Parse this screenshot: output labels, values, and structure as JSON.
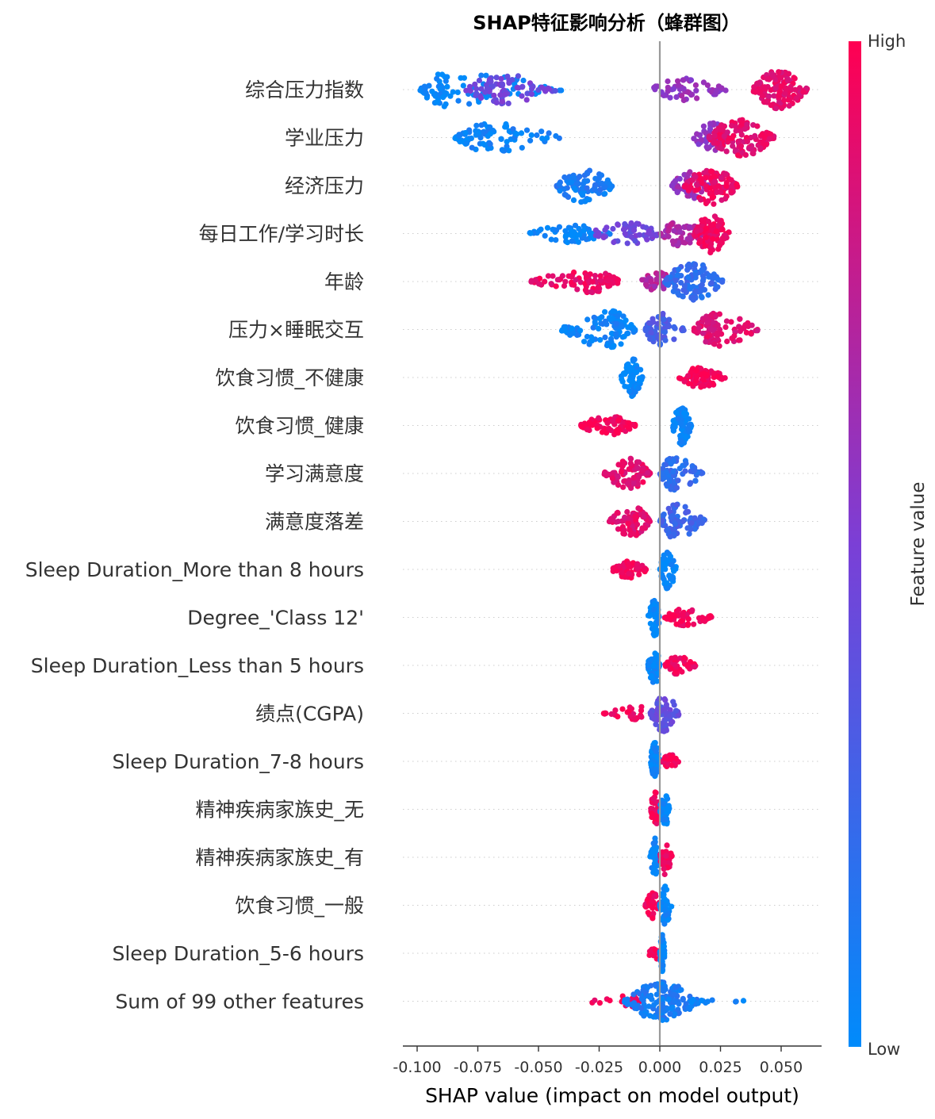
{
  "chart_data": {
    "type": "scatter",
    "title": "SHAP特征影响分析（蜂群图）",
    "xlabel": "SHAP value (impact on model output)",
    "xlim": [
      -0.106,
      0.068
    ],
    "x_ticks": [
      -0.1,
      -0.075,
      -0.05,
      -0.025,
      0.0,
      0.025,
      0.05
    ],
    "x_tick_labels": [
      "-0.100",
      "-0.075",
      "-0.050",
      "-0.025",
      "0.000",
      "0.025",
      "0.050"
    ],
    "colorbar": {
      "label": "Feature value",
      "high": "High",
      "low": "Low",
      "low_color": "#008bfb",
      "high_color": "#ff0052"
    },
    "features": [
      {
        "name": "综合压力指数",
        "clusters": [
          {
            "min": -0.099,
            "max": -0.04,
            "center": -0.088,
            "n": 90,
            "spread": 0.9,
            "value": 0.02
          },
          {
            "min": -0.08,
            "max": -0.042,
            "center": -0.065,
            "n": 70,
            "spread": 0.8,
            "value": 0.45
          },
          {
            "min": -0.004,
            "max": 0.028,
            "center": 0.01,
            "n": 55,
            "spread": 0.6,
            "value": 0.6
          },
          {
            "min": 0.038,
            "max": 0.061,
            "center": 0.049,
            "n": 140,
            "spread": 1.0,
            "value": 0.9
          }
        ]
      },
      {
        "name": "学业压力",
        "clusters": [
          {
            "min": -0.085,
            "max": -0.04,
            "center": -0.07,
            "n": 90,
            "spread": 0.75,
            "value": 0.05
          },
          {
            "min": 0.014,
            "max": 0.028,
            "center": 0.022,
            "n": 55,
            "spread": 0.8,
            "value": 0.55
          },
          {
            "min": 0.02,
            "max": 0.047,
            "center": 0.033,
            "n": 130,
            "spread": 1.0,
            "value": 0.9
          }
        ]
      },
      {
        "name": "经济压力",
        "clusters": [
          {
            "min": -0.043,
            "max": -0.019,
            "center": -0.032,
            "n": 90,
            "spread": 0.9,
            "value": 0.1
          },
          {
            "min": 0.005,
            "max": 0.02,
            "center": 0.012,
            "n": 55,
            "spread": 0.75,
            "value": 0.6
          },
          {
            "min": 0.01,
            "max": 0.032,
            "center": 0.022,
            "n": 110,
            "spread": 1.0,
            "value": 0.92
          }
        ]
      },
      {
        "name": "每日工作/学习时长",
        "clusters": [
          {
            "min": -0.054,
            "max": -0.02,
            "center": -0.035,
            "n": 60,
            "spread": 0.5,
            "value": 0.02
          },
          {
            "min": -0.03,
            "max": 0.0,
            "center": -0.012,
            "n": 60,
            "spread": 0.55,
            "value": 0.45
          },
          {
            "min": 0.0,
            "max": 0.018,
            "center": 0.008,
            "n": 60,
            "spread": 0.65,
            "value": 0.7
          },
          {
            "min": 0.014,
            "max": 0.029,
            "center": 0.021,
            "n": 100,
            "spread": 1.0,
            "value": 0.95
          }
        ]
      },
      {
        "name": "年龄",
        "clusters": [
          {
            "min": -0.053,
            "max": -0.016,
            "center": -0.03,
            "n": 90,
            "spread": 0.6,
            "value": 0.92
          },
          {
            "min": -0.008,
            "max": 0.006,
            "center": -0.001,
            "n": 40,
            "spread": 0.5,
            "value": 0.7
          },
          {
            "min": 0.002,
            "max": 0.026,
            "center": 0.013,
            "n": 120,
            "spread": 1.0,
            "value": 0.2
          }
        ]
      },
      {
        "name": "压力×睡眠交互",
        "clusters": [
          {
            "min": -0.041,
            "max": -0.01,
            "center": -0.02,
            "n": 110,
            "spread": 1.0,
            "value": 0.05
          },
          {
            "min": -0.006,
            "max": 0.01,
            "center": 0.0,
            "n": 70,
            "spread": 0.95,
            "value": 0.3
          },
          {
            "min": 0.014,
            "max": 0.041,
            "center": 0.023,
            "n": 100,
            "spread": 0.9,
            "value": 0.88
          }
        ]
      },
      {
        "name": "饮食习惯_不健康",
        "clusters": [
          {
            "min": -0.016,
            "max": -0.007,
            "center": -0.011,
            "n": 70,
            "spread": 1.0,
            "value": 0.02
          },
          {
            "min": 0.008,
            "max": 0.027,
            "center": 0.017,
            "n": 80,
            "spread": 0.55,
            "value": 0.97
          }
        ]
      },
      {
        "name": "饮食习惯_健康",
        "clusters": [
          {
            "min": -0.033,
            "max": -0.01,
            "center": -0.021,
            "n": 75,
            "spread": 0.5,
            "value": 0.97
          },
          {
            "min": 0.005,
            "max": 0.013,
            "center": 0.009,
            "n": 70,
            "spread": 1.0,
            "value": 0.02
          }
        ]
      },
      {
        "name": "学习满意度",
        "clusters": [
          {
            "min": -0.023,
            "max": -0.004,
            "center": -0.012,
            "n": 90,
            "spread": 0.8,
            "value": 0.9
          },
          {
            "min": 0.0,
            "max": 0.018,
            "center": 0.006,
            "n": 90,
            "spread": 0.9,
            "value": 0.2
          }
        ]
      },
      {
        "name": "满意度落差",
        "clusters": [
          {
            "min": -0.021,
            "max": -0.004,
            "center": -0.011,
            "n": 90,
            "spread": 0.8,
            "value": 0.9
          },
          {
            "min": 0.0,
            "max": 0.019,
            "center": 0.006,
            "n": 90,
            "spread": 0.9,
            "value": 0.25
          }
        ]
      },
      {
        "name": "Sleep Duration_More than 8 hours",
        "clusters": [
          {
            "min": -0.02,
            "max": -0.005,
            "center": -0.013,
            "n": 55,
            "spread": 0.45,
            "value": 0.97
          },
          {
            "min": 0.0,
            "max": 0.007,
            "center": 0.003,
            "n": 60,
            "spread": 1.0,
            "value": 0.02
          }
        ]
      },
      {
        "name": "Degree_'Class 12'",
        "clusters": [
          {
            "min": -0.005,
            "max": 0.0,
            "center": -0.002,
            "n": 55,
            "spread": 1.0,
            "value": 0.02
          },
          {
            "min": 0.002,
            "max": 0.022,
            "center": 0.01,
            "n": 55,
            "spread": 0.45,
            "value": 0.97
          }
        ]
      },
      {
        "name": "Sleep Duration_Less than 5 hours",
        "clusters": [
          {
            "min": -0.005,
            "max": 0.0,
            "center": -0.002,
            "n": 55,
            "spread": 1.0,
            "value": 0.02
          },
          {
            "min": 0.002,
            "max": 0.015,
            "center": 0.007,
            "n": 45,
            "spread": 0.5,
            "value": 0.97
          }
        ]
      },
      {
        "name": "绩点(CGPA)",
        "clusters": [
          {
            "min": -0.024,
            "max": -0.002,
            "center": -0.008,
            "n": 30,
            "spread": 0.35,
            "value": 0.95
          },
          {
            "min": -0.004,
            "max": 0.008,
            "center": 0.002,
            "n": 70,
            "spread": 1.0,
            "value": 0.4
          }
        ]
      },
      {
        "name": "Sleep Duration_7-8 hours",
        "clusters": [
          {
            "min": -0.004,
            "max": 0.0,
            "center": -0.002,
            "n": 55,
            "spread": 1.0,
            "value": 0.02
          },
          {
            "min": 0.001,
            "max": 0.008,
            "center": 0.004,
            "n": 30,
            "spread": 0.4,
            "value": 0.97
          }
        ]
      },
      {
        "name": "精神疾病家族史_无",
        "clusters": [
          {
            "min": -0.004,
            "max": 0.0,
            "center": -0.002,
            "n": 40,
            "spread": 0.9,
            "value": 0.97
          },
          {
            "min": 0.0,
            "max": 0.004,
            "center": 0.002,
            "n": 40,
            "spread": 1.0,
            "value": 0.02
          }
        ]
      },
      {
        "name": "精神疾病家族史_有",
        "clusters": [
          {
            "min": -0.004,
            "max": 0.0,
            "center": -0.002,
            "n": 40,
            "spread": 1.0,
            "value": 0.02
          },
          {
            "min": 0.0,
            "max": 0.005,
            "center": 0.002,
            "n": 40,
            "spread": 0.9,
            "value": 0.97
          }
        ]
      },
      {
        "name": "饮食习惯_一般",
        "clusters": [
          {
            "min": -0.006,
            "max": 0.0,
            "center": -0.003,
            "n": 40,
            "spread": 0.7,
            "value": 0.97
          },
          {
            "min": 0.0,
            "max": 0.005,
            "center": 0.002,
            "n": 45,
            "spread": 1.0,
            "value": 0.02
          }
        ]
      },
      {
        "name": "Sleep Duration_5-6 hours",
        "clusters": [
          {
            "min": -0.005,
            "max": 0.0,
            "center": -0.002,
            "n": 20,
            "spread": 0.35,
            "value": 0.97
          },
          {
            "min": 0.0,
            "max": 0.002,
            "center": 0.001,
            "n": 40,
            "spread": 1.0,
            "value": 0.02
          }
        ]
      },
      {
        "name": "Sum of 99 other features",
        "clusters": [
          {
            "min": -0.03,
            "max": -0.008,
            "center": -0.012,
            "n": 25,
            "spread": 0.4,
            "value": 0.95
          },
          {
            "min": -0.015,
            "max": 0.016,
            "center": 0.001,
            "n": 160,
            "spread": 1.0,
            "value": 0.1
          },
          {
            "min": 0.012,
            "max": 0.036,
            "center": 0.018,
            "n": 12,
            "spread": 0.2,
            "value": 0.05
          }
        ]
      }
    ]
  }
}
